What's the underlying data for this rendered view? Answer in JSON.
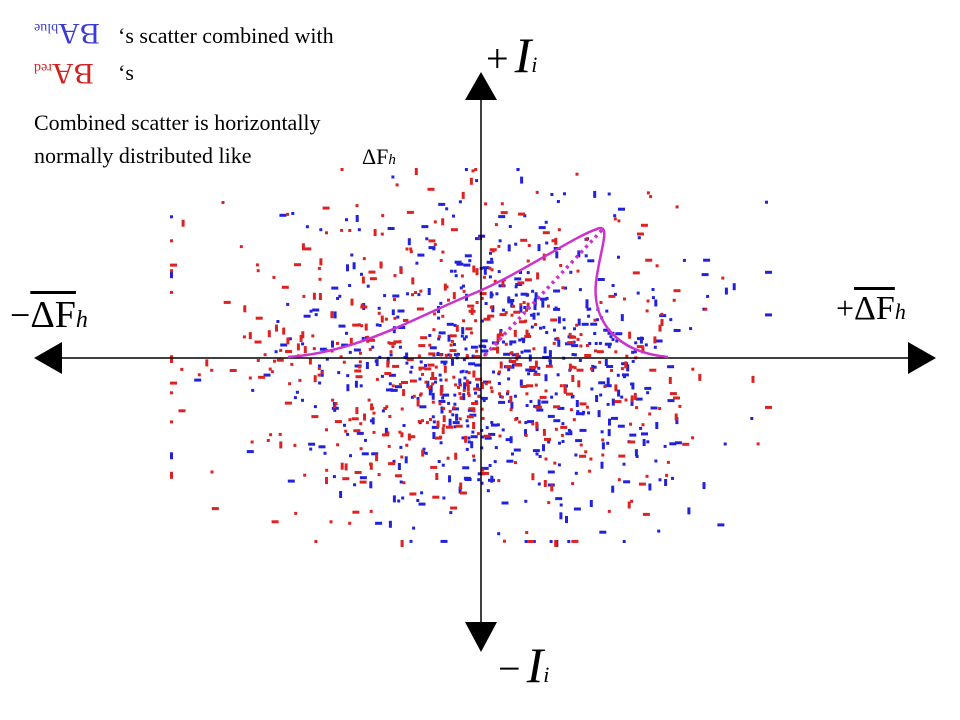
{
  "caption": {
    "line1_suffix": "‘s scatter combined with",
    "line2_suffix": "‘s",
    "line3": "Combined scatter is horizontally",
    "line4": "normally distributed like"
  },
  "ba_labels": {
    "blue": {
      "main": "BA",
      "sub": "blue",
      "color": "#3a3ad6"
    },
    "red": {
      "main": "BA",
      "sub": "red",
      "color": "#d42020"
    }
  },
  "axis_labels": {
    "top": {
      "sign": "+",
      "symbol": "I",
      "sub": "i"
    },
    "bottom": {
      "sign": "−",
      "symbol": "I",
      "sub": "i"
    },
    "left": {
      "sign": "−",
      "symbol": "ΔF",
      "sub": "h"
    },
    "right": {
      "sign": "+",
      "symbol": "ΔF",
      "sub": "h"
    },
    "inline": {
      "symbol": "ΔF",
      "sub": "h"
    }
  },
  "colors": {
    "axis": "#000000",
    "blue_points": "#2222dd",
    "red_points": "#dd2222",
    "curve": "#cc33cc"
  }
}
